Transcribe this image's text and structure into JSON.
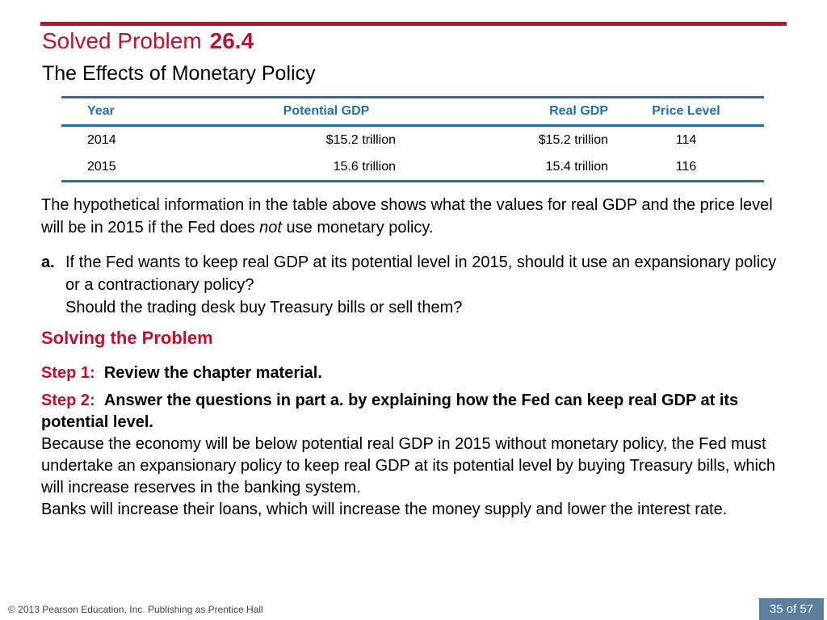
{
  "header": {
    "title_prefix": "Solved Problem",
    "title_number": "26.4",
    "subtitle": "The Effects of Monetary Policy"
  },
  "table": {
    "columns": [
      "Year",
      "Potential GDP",
      "Real GDP",
      "Price Level"
    ],
    "rows": [
      [
        "2014",
        "$15.2 trillion",
        "$15.2 trillion",
        "114"
      ],
      [
        "2015",
        "15.6 trillion",
        "15.4 trillion",
        "116"
      ]
    ]
  },
  "intro": {
    "before_italic": "The hypothetical information in the table above shows what the values for real GDP and the price level will be in 2015 if the Fed does ",
    "italic": "not",
    "after_italic": " use monetary policy."
  },
  "question": {
    "label": "a.",
    "line1": "If the Fed wants to keep real GDP at its potential level in 2015, should it use an expansionary policy or a contractionary policy?",
    "line2": "Should the trading desk buy Treasury bills or sell them?"
  },
  "solving": {
    "heading": "Solving the Problem",
    "step1_label": "Step 1:",
    "step1_text": "Review the chapter material.",
    "step2_label": "Step 2:",
    "step2_text": "Answer the questions in part a. by explaining how the Fed can keep real GDP at its potential level.",
    "explanation1": "Because the economy will be below potential real GDP in 2015 without monetary policy, the Fed must undertake an expansionary policy to keep real GDP at its potential level by buying Treasury bills, which will increase reserves in the banking system.",
    "explanation2": "Banks will increase their loans, which will increase the money supply and lower the interest rate."
  },
  "footer": {
    "copyright": "© 2013 Pearson Education, Inc. Publishing as Prentice Hall",
    "page": "35 of 57"
  },
  "colors": {
    "accent_red": "#c0102e",
    "table_blue": "#1f6fb5",
    "pager_bg": "#5c7f9e"
  }
}
